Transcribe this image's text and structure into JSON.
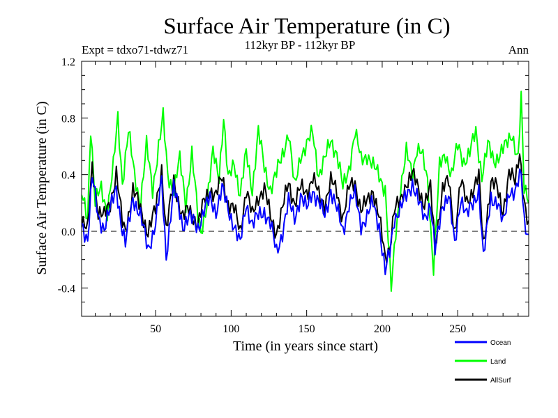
{
  "chart_data": {
    "type": "line",
    "title": "Surface Air Temperature (in C)",
    "subtitle": "112kyr BP - 112kyr BP",
    "left_label": "Expt = tdxo71-tdwz71",
    "right_label": "Ann",
    "xlabel": "Time (in years since start)",
    "ylabel": "Surface Air Temperature (in C)",
    "xlim": [
      1,
      297
    ],
    "ylim": [
      -0.6,
      1.2
    ],
    "x_ticks": [
      50,
      100,
      150,
      200,
      250
    ],
    "y_ticks": [
      -0.4,
      0.0,
      0.4,
      0.8,
      1.2
    ],
    "y_tick_labels": [
      "-0.4",
      "0.0",
      "0.4",
      "0.8",
      "1.2"
    ],
    "zero_line": "dashed",
    "legend_position": "bottom-right",
    "series": [
      {
        "name": "Ocean",
        "color": "#0000ff",
        "key_points": [
          [
            1,
            0.05
          ],
          [
            5,
            -0.05
          ],
          [
            8,
            0.38
          ],
          [
            12,
            0.1
          ],
          [
            16,
            0.03
          ],
          [
            20,
            0.15
          ],
          [
            24,
            0.32
          ],
          [
            28,
            0.0
          ],
          [
            30,
            -0.1
          ],
          [
            35,
            0.25
          ],
          [
            40,
            0.1
          ],
          [
            45,
            -0.12
          ],
          [
            50,
            0.05
          ],
          [
            54,
            0.35
          ],
          [
            57,
            -0.17
          ],
          [
            62,
            0.3
          ],
          [
            68,
            0.05
          ],
          [
            72,
            0.1
          ],
          [
            78,
            0.03
          ],
          [
            82,
            0.15
          ],
          [
            86,
            0.22
          ],
          [
            90,
            0.15
          ],
          [
            94,
            0.3
          ],
          [
            98,
            0.15
          ],
          [
            102,
            0.05
          ],
          [
            106,
            -0.1
          ],
          [
            110,
            0.2
          ],
          [
            114,
            0.05
          ],
          [
            118,
            0.1
          ],
          [
            122,
            0.15
          ],
          [
            126,
            0.05
          ],
          [
            130,
            -0.15
          ],
          [
            134,
            0.0
          ],
          [
            138,
            0.2
          ],
          [
            142,
            0.1
          ],
          [
            146,
            0.25
          ],
          [
            150,
            0.15
          ],
          [
            154,
            0.3
          ],
          [
            158,
            0.2
          ],
          [
            162,
            0.1
          ],
          [
            166,
            0.3
          ],
          [
            170,
            0.15
          ],
          [
            174,
            0.0
          ],
          [
            178,
            0.2
          ],
          [
            182,
            0.25
          ],
          [
            186,
            0.05
          ],
          [
            190,
            0.1
          ],
          [
            194,
            0.2
          ],
          [
            198,
            0.05
          ],
          [
            202,
            -0.3
          ],
          [
            205,
            -0.15
          ],
          [
            208,
            0.1
          ],
          [
            212,
            0.15
          ],
          [
            216,
            0.25
          ],
          [
            220,
            0.35
          ],
          [
            224,
            0.2
          ],
          [
            228,
            0.1
          ],
          [
            232,
            0.2
          ],
          [
            235,
            -0.15
          ],
          [
            240,
            0.2
          ],
          [
            244,
            0.25
          ],
          [
            248,
            -0.1
          ],
          [
            252,
            0.25
          ],
          [
            256,
            0.1
          ],
          [
            260,
            0.2
          ],
          [
            264,
            0.3
          ],
          [
            267,
            -0.2
          ],
          [
            272,
            0.25
          ],
          [
            276,
            0.2
          ],
          [
            280,
            0.05
          ],
          [
            284,
            0.3
          ],
          [
            288,
            0.25
          ],
          [
            292,
            0.42
          ],
          [
            294,
            0.1
          ],
          [
            297,
            -0.05
          ]
        ]
      },
      {
        "name": "Land",
        "color": "#00ff00",
        "key_points": [
          [
            1,
            0.25
          ],
          [
            5,
            0.1
          ],
          [
            7,
            0.75
          ],
          [
            10,
            0.2
          ],
          [
            14,
            0.3
          ],
          [
            18,
            0.15
          ],
          [
            22,
            0.45
          ],
          [
            25,
            0.8
          ],
          [
            28,
            0.35
          ],
          [
            32,
            0.7
          ],
          [
            36,
            0.4
          ],
          [
            40,
            0.2
          ],
          [
            44,
            0.6
          ],
          [
            48,
            0.3
          ],
          [
            52,
            0.6
          ],
          [
            55,
            0.8
          ],
          [
            58,
            0.4
          ],
          [
            62,
            0.3
          ],
          [
            66,
            0.5
          ],
          [
            70,
            0.2
          ],
          [
            74,
            0.55
          ],
          [
            78,
            0.1
          ],
          [
            80,
            0.0
          ],
          [
            84,
            0.2
          ],
          [
            88,
            0.55
          ],
          [
            92,
            0.4
          ],
          [
            95,
            0.8
          ],
          [
            98,
            0.35
          ],
          [
            102,
            0.5
          ],
          [
            106,
            0.25
          ],
          [
            110,
            0.55
          ],
          [
            114,
            0.3
          ],
          [
            118,
            0.7
          ],
          [
            122,
            0.45
          ],
          [
            126,
            0.3
          ],
          [
            130,
            0.4
          ],
          [
            134,
            0.55
          ],
          [
            138,
            0.7
          ],
          [
            142,
            0.3
          ],
          [
            146,
            0.55
          ],
          [
            150,
            0.6
          ],
          [
            154,
            0.7
          ],
          [
            158,
            0.4
          ],
          [
            162,
            0.5
          ],
          [
            166,
            0.65
          ],
          [
            170,
            0.55
          ],
          [
            174,
            0.3
          ],
          [
            178,
            0.45
          ],
          [
            182,
            0.7
          ],
          [
            186,
            0.5
          ],
          [
            190,
            0.55
          ],
          [
            194,
            0.45
          ],
          [
            198,
            0.4
          ],
          [
            202,
            0.3
          ],
          [
            206,
            -0.42
          ],
          [
            209,
            0.0
          ],
          [
            212,
            0.3
          ],
          [
            216,
            0.55
          ],
          [
            220,
            0.4
          ],
          [
            223,
            0.6
          ],
          [
            226,
            0.55
          ],
          [
            230,
            0.35
          ],
          [
            234,
            -0.25
          ],
          [
            238,
            0.45
          ],
          [
            242,
            0.55
          ],
          [
            246,
            0.4
          ],
          [
            250,
            0.6
          ],
          [
            254,
            0.5
          ],
          [
            258,
            0.55
          ],
          [
            262,
            0.7
          ],
          [
            266,
            0.4
          ],
          [
            270,
            0.6
          ],
          [
            274,
            0.5
          ],
          [
            278,
            0.55
          ],
          [
            282,
            0.6
          ],
          [
            286,
            0.7
          ],
          [
            290,
            0.5
          ],
          [
            292,
            0.93
          ],
          [
            294,
            0.3
          ],
          [
            297,
            0.25
          ]
        ]
      },
      {
        "name": "AllSurf",
        "color": "#000000",
        "key_points": [
          [
            1,
            0.1
          ],
          [
            5,
            0.0
          ],
          [
            8,
            0.45
          ],
          [
            12,
            0.15
          ],
          [
            16,
            0.1
          ],
          [
            20,
            0.2
          ],
          [
            24,
            0.42
          ],
          [
            28,
            0.05
          ],
          [
            30,
            0.0
          ],
          [
            35,
            0.3
          ],
          [
            40,
            0.15
          ],
          [
            45,
            0.0
          ],
          [
            50,
            0.15
          ],
          [
            54,
            0.45
          ],
          [
            57,
            0.0
          ],
          [
            62,
            0.35
          ],
          [
            68,
            0.1
          ],
          [
            72,
            0.15
          ],
          [
            78,
            0.05
          ],
          [
            82,
            0.2
          ],
          [
            86,
            0.3
          ],
          [
            90,
            0.25
          ],
          [
            94,
            0.38
          ],
          [
            98,
            0.2
          ],
          [
            102,
            0.15
          ],
          [
            106,
            0.0
          ],
          [
            110,
            0.3
          ],
          [
            114,
            0.1
          ],
          [
            118,
            0.25
          ],
          [
            122,
            0.3
          ],
          [
            126,
            0.1
          ],
          [
            130,
            0.0
          ],
          [
            134,
            0.15
          ],
          [
            138,
            0.35
          ],
          [
            142,
            0.2
          ],
          [
            146,
            0.3
          ],
          [
            150,
            0.28
          ],
          [
            154,
            0.38
          ],
          [
            158,
            0.25
          ],
          [
            162,
            0.2
          ],
          [
            166,
            0.35
          ],
          [
            170,
            0.28
          ],
          [
            174,
            0.1
          ],
          [
            178,
            0.3
          ],
          [
            182,
            0.35
          ],
          [
            186,
            0.15
          ],
          [
            190,
            0.2
          ],
          [
            194,
            0.3
          ],
          [
            198,
            0.1
          ],
          [
            202,
            -0.2
          ],
          [
            205,
            -0.1
          ],
          [
            208,
            0.15
          ],
          [
            212,
            0.2
          ],
          [
            216,
            0.35
          ],
          [
            220,
            0.4
          ],
          [
            224,
            0.3
          ],
          [
            228,
            0.2
          ],
          [
            232,
            0.3
          ],
          [
            235,
            -0.1
          ],
          [
            240,
            0.3
          ],
          [
            244,
            0.35
          ],
          [
            248,
            0.0
          ],
          [
            252,
            0.35
          ],
          [
            256,
            0.2
          ],
          [
            260,
            0.3
          ],
          [
            264,
            0.38
          ],
          [
            267,
            -0.1
          ],
          [
            272,
            0.35
          ],
          [
            276,
            0.3
          ],
          [
            280,
            0.15
          ],
          [
            284,
            0.4
          ],
          [
            288,
            0.35
          ],
          [
            291,
            0.58
          ],
          [
            294,
            0.2
          ],
          [
            297,
            0.0
          ]
        ]
      }
    ]
  }
}
